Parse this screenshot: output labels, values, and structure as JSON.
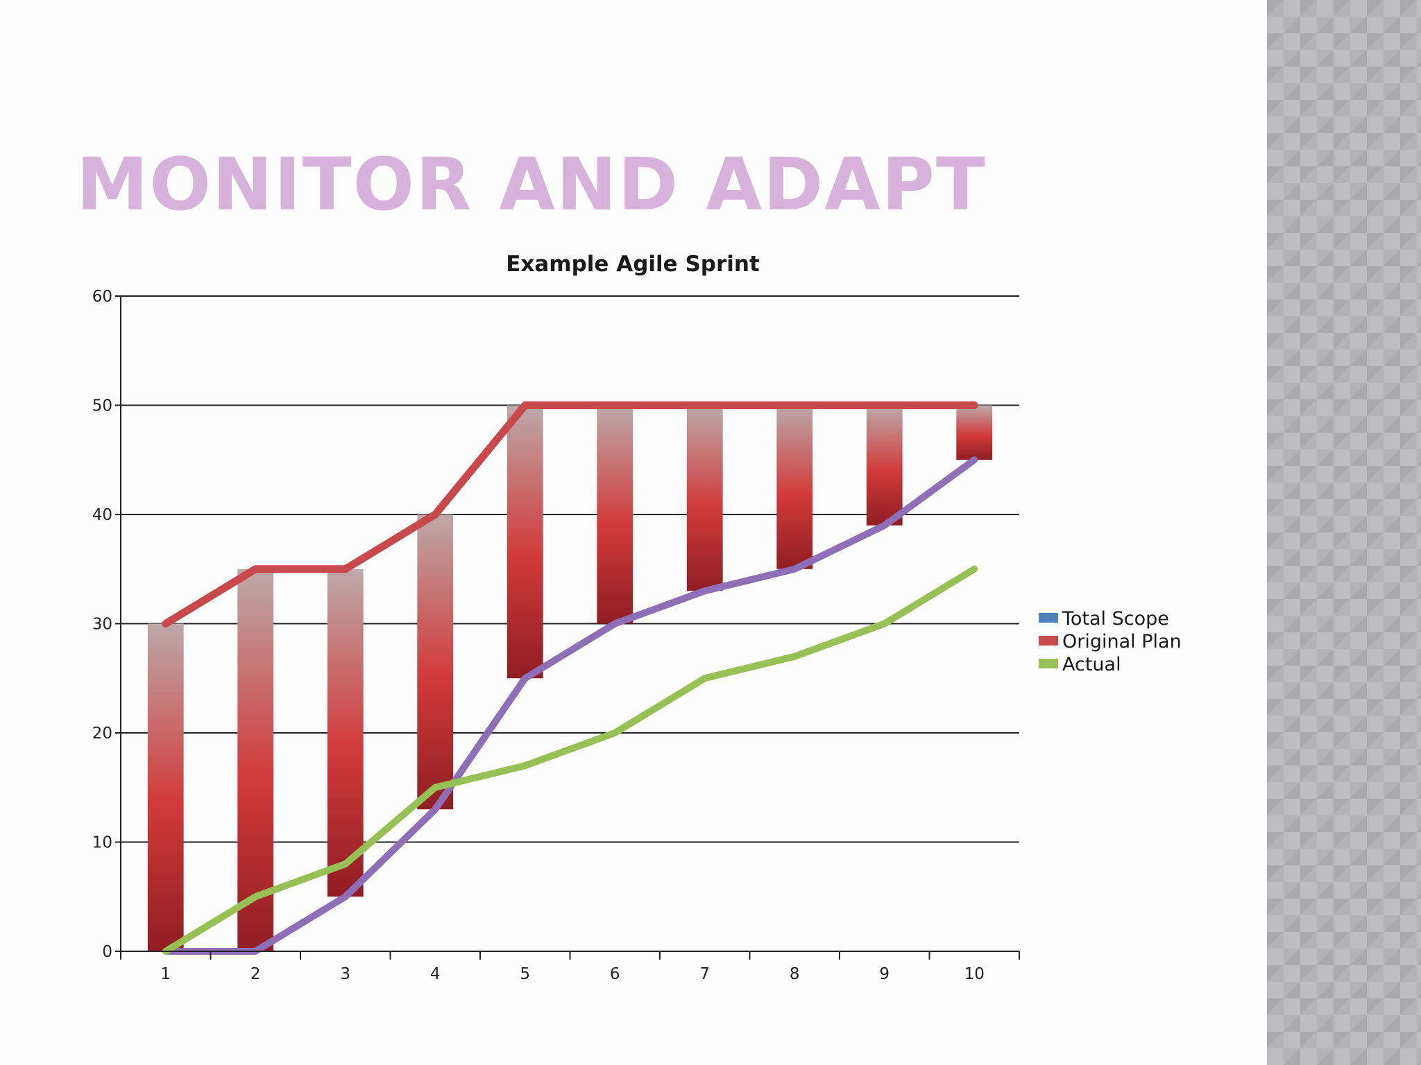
{
  "slide": {
    "title": "MONITOR AND ADAPT"
  },
  "colors": {
    "title": "#d7b3db",
    "total_scope": "#8e6fb7",
    "original_plan": "#c9484c",
    "actual": "#97c154",
    "legend_total_scope": "#4f81bd"
  },
  "chart_data": {
    "type": "line",
    "title": "Example Agile Sprint",
    "xlabel": "",
    "ylabel": "",
    "categories": [
      "1",
      "2",
      "3",
      "4",
      "5",
      "6",
      "7",
      "8",
      "9",
      "10"
    ],
    "ylim": [
      0,
      60
    ],
    "yticks": [
      0,
      10,
      20,
      30,
      40,
      50,
      60
    ],
    "grid": true,
    "legend_position": "right",
    "series": [
      {
        "name": "Total Scope",
        "values": [
          0,
          0,
          5,
          13,
          25,
          30,
          33,
          35,
          39,
          45
        ]
      },
      {
        "name": "Original Plan",
        "values": [
          30,
          35,
          35,
          40,
          50,
          50,
          50,
          50,
          50,
          50
        ]
      },
      {
        "name": "Actual",
        "values": [
          0,
          5,
          8,
          15,
          17,
          20,
          25,
          27,
          30,
          35
        ]
      }
    ],
    "bars": {
      "description": "",
      "low": [
        0,
        0,
        5,
        13,
        25,
        30,
        33,
        35,
        39,
        45
      ],
      "high": [
        30,
        35,
        35,
        40,
        50,
        50,
        50,
        50,
        50,
        50
      ]
    }
  }
}
